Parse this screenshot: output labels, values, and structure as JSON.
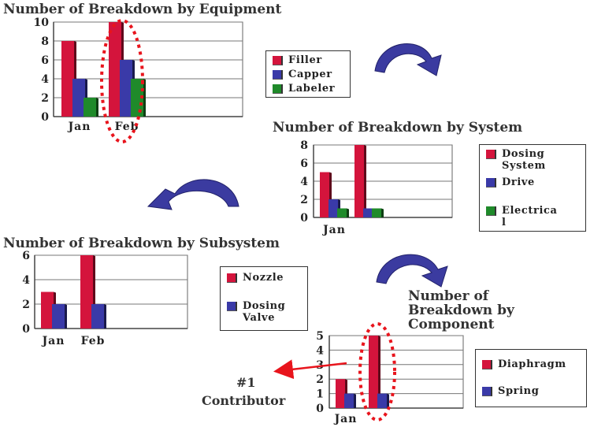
{
  "colors": {
    "filler": "#d4143c",
    "capper": "#3a3aa8",
    "labeler": "#1f8a2a",
    "highlight": "#e8141c",
    "arrow": "#3b3ba0"
  },
  "icons": [
    "curved-arrow-icon",
    "curved-arrow-icon",
    "curved-arrow-icon"
  ],
  "chart_data": [
    {
      "type": "bar",
      "title": "Number of Breakdown by Equipment",
      "categories": [
        "Jan",
        "Feb"
      ],
      "series": [
        {
          "name": "Filler",
          "values": [
            8,
            10
          ]
        },
        {
          "name": "Capper",
          "values": [
            4,
            6
          ]
        },
        {
          "name": "Labeler",
          "values": [
            2,
            4
          ]
        }
      ],
      "ylim": [
        0,
        10
      ],
      "yticks": [
        0,
        2,
        4,
        6,
        8,
        10
      ],
      "grid": true,
      "legend": "right"
    },
    {
      "type": "bar",
      "title": "Number of Breakdown by System",
      "categories": [
        "Jan",
        ""
      ],
      "series": [
        {
          "name": "Dosing\nSystem",
          "values": [
            5,
            8
          ]
        },
        {
          "name": "Drive",
          "values": [
            2,
            1
          ]
        },
        {
          "name": "Electrica\nl",
          "values": [
            1,
            1
          ]
        }
      ],
      "ylim": [
        0,
        8
      ],
      "yticks": [
        0,
        2,
        4,
        6,
        8
      ],
      "grid": true,
      "legend": "right"
    },
    {
      "type": "bar",
      "title": "Number of Breakdown by Subsystem",
      "categories": [
        "Jan",
        "Feb"
      ],
      "series": [
        {
          "name": "Nozzle",
          "values": [
            3,
            6
          ]
        },
        {
          "name": "Dosing\nValve",
          "values": [
            2,
            2
          ]
        }
      ],
      "ylim": [
        0,
        6
      ],
      "yticks": [
        0,
        2,
        4,
        6
      ],
      "grid": true,
      "legend": "right"
    },
    {
      "type": "bar",
      "title": "Number of\nBreakdown by\nComponent",
      "categories": [
        "Jan",
        ""
      ],
      "series": [
        {
          "name": "Diaphragm",
          "values": [
            2,
            5
          ]
        },
        {
          "name": "Spring",
          "values": [
            1,
            1
          ]
        }
      ],
      "ylim": [
        0,
        5
      ],
      "yticks": [
        0,
        1,
        2,
        3,
        4,
        5
      ],
      "grid": true,
      "legend": "right"
    }
  ],
  "annotation": {
    "rank": "#1",
    "label": "Contributor"
  }
}
